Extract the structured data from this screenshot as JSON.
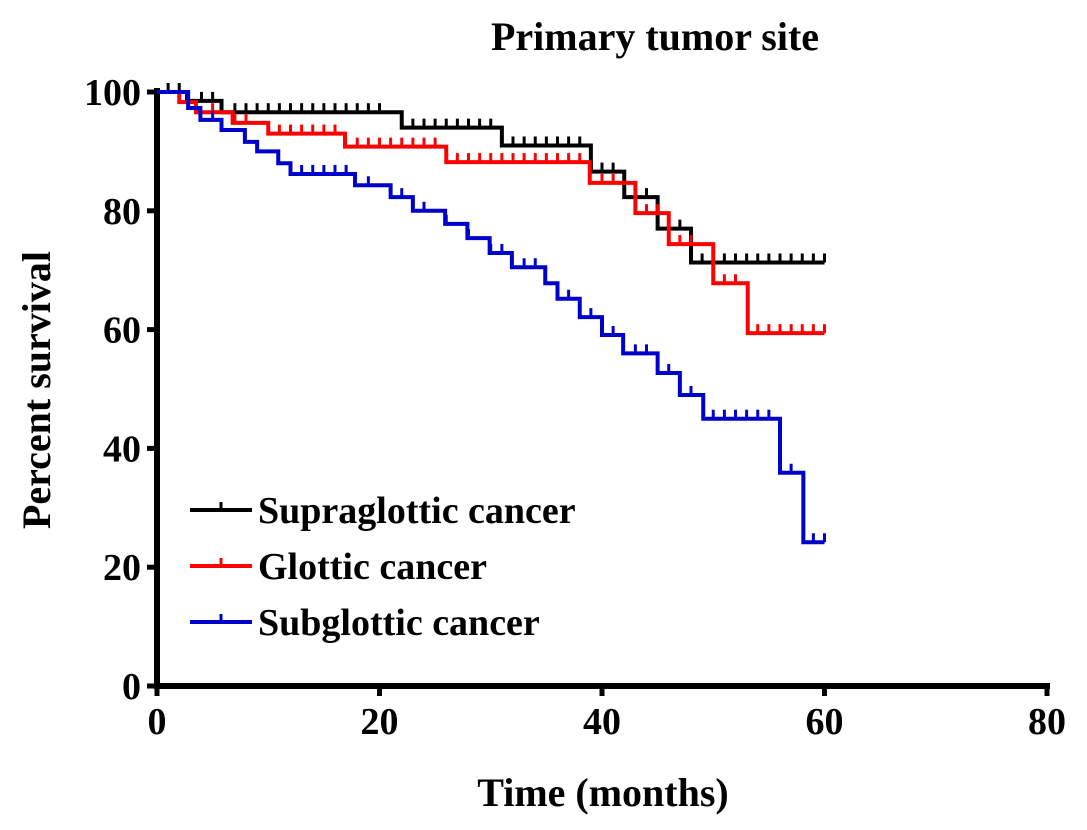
{
  "chart_data": {
    "type": "line",
    "subtype": "kaplan-meier",
    "title": "Primary tumor site",
    "xlabel": "Time (months)",
    "ylabel": "Percent survival",
    "xlim": [
      0,
      80
    ],
    "ylim": [
      0,
      100
    ],
    "xticks": [
      "0",
      "20",
      "40",
      "60",
      "80"
    ],
    "yticks": [
      "0",
      "20",
      "40",
      "60",
      "80",
      "100"
    ],
    "grid": false,
    "legend_position": "bottom-left",
    "series": [
      {
        "name": "Supraglottic cancer",
        "color": "#000000",
        "end": 60,
        "steps": [
          [
            0,
            100
          ],
          [
            2.7,
            98.5
          ],
          [
            5.8,
            96.6
          ],
          [
            22,
            94
          ],
          [
            31,
            91
          ],
          [
            39,
            86.6
          ],
          [
            42,
            82.3
          ],
          [
            45,
            77
          ],
          [
            48,
            71.3
          ]
        ],
        "censored": [
          1,
          2,
          4,
          5,
          7,
          8,
          9,
          10,
          11,
          12,
          13,
          14,
          15,
          16,
          17,
          18,
          19,
          20,
          23,
          24,
          25,
          26,
          27,
          28,
          29,
          30,
          32,
          33,
          34,
          35,
          36,
          37,
          38,
          40,
          41,
          43,
          44,
          46,
          47,
          49,
          50,
          51,
          52,
          53,
          54,
          55,
          56,
          57,
          58,
          59,
          60
        ]
      },
      {
        "name": "Glottic cancer",
        "color": "#ff0000",
        "end": 60,
        "steps": [
          [
            0,
            100
          ],
          [
            2,
            98.3
          ],
          [
            3.5,
            96.6
          ],
          [
            6.8,
            94.8
          ],
          [
            10,
            93
          ],
          [
            16.9,
            90.8
          ],
          [
            26,
            88.2
          ],
          [
            38.9,
            84.7
          ],
          [
            43,
            79.6
          ],
          [
            46,
            74.4
          ],
          [
            50,
            67.8
          ],
          [
            53.1,
            59.4
          ]
        ],
        "censored": [
          5,
          7,
          8,
          11,
          12,
          13,
          14,
          15,
          16,
          18,
          19,
          20,
          21,
          22,
          23,
          24,
          25,
          27,
          28,
          29,
          30,
          31,
          32,
          33,
          34,
          35,
          36,
          37,
          38,
          40,
          41,
          44,
          45,
          47,
          48,
          51,
          52,
          54,
          55,
          56,
          57,
          58,
          59,
          60
        ]
      },
      {
        "name": "Subglottic cancer",
        "color": "#0000cc",
        "end": 60,
        "steps": [
          [
            0,
            100
          ],
          [
            2.8,
            97.3
          ],
          [
            3.9,
            95.3
          ],
          [
            5.8,
            93.6
          ],
          [
            7.9,
            91.6
          ],
          [
            9,
            90
          ],
          [
            10.9,
            88
          ],
          [
            12,
            86.2
          ],
          [
            17.8,
            84.3
          ],
          [
            21,
            82.3
          ],
          [
            23,
            80
          ],
          [
            25.9,
            77.8
          ],
          [
            27.9,
            75.4
          ],
          [
            29.9,
            72.9
          ],
          [
            31.9,
            70.5
          ],
          [
            34.9,
            67.8
          ],
          [
            36,
            65.2
          ],
          [
            38,
            62.1
          ],
          [
            40,
            59.1
          ],
          [
            41.9,
            56
          ],
          [
            45,
            52.7
          ],
          [
            47,
            49
          ],
          [
            49.1,
            45
          ],
          [
            56,
            35.9
          ],
          [
            58.1,
            24.2
          ]
        ],
        "censored": [
          5,
          9,
          13,
          14,
          15,
          16,
          17,
          19,
          22,
          24,
          26,
          28,
          30,
          31,
          33,
          34,
          37,
          39,
          41,
          43,
          44,
          46,
          48,
          50,
          51,
          52,
          53,
          54,
          55,
          57,
          59,
          60
        ]
      }
    ]
  }
}
